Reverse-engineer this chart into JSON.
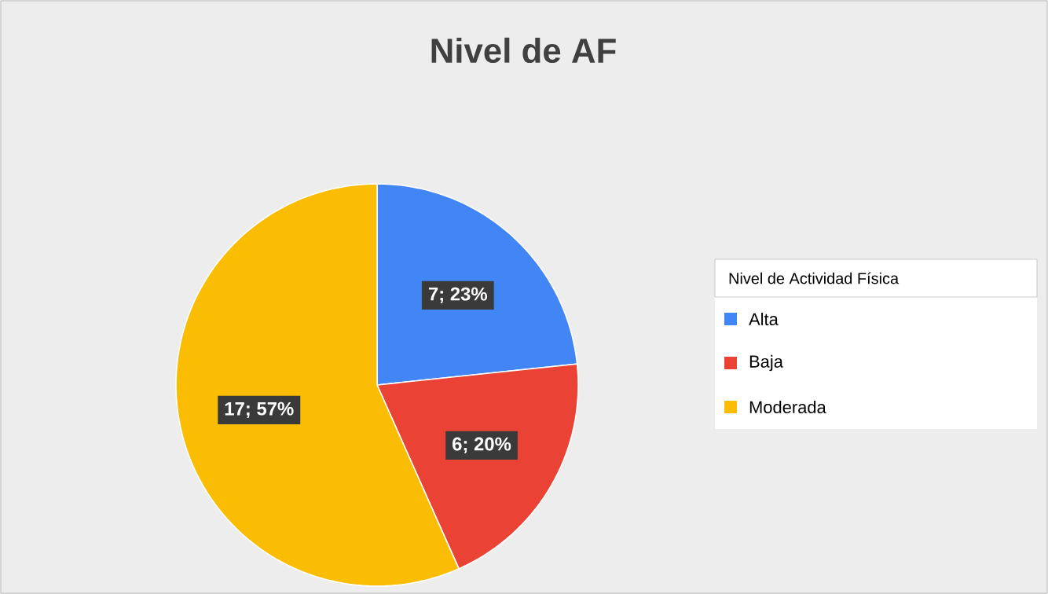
{
  "chart_data": {
    "type": "pie",
    "title": "Nivel de AF",
    "legend_title": "Nivel de Actividad Física",
    "categories": [
      "Alta",
      "Baja",
      "Moderada"
    ],
    "values": [
      7,
      6,
      17
    ],
    "value_labels": [
      "7; 23%",
      "6; 20%",
      "17; 57%"
    ],
    "colors": [
      "#4285f4",
      "#ea4335",
      "#fbbc04"
    ],
    "legend": "right"
  }
}
